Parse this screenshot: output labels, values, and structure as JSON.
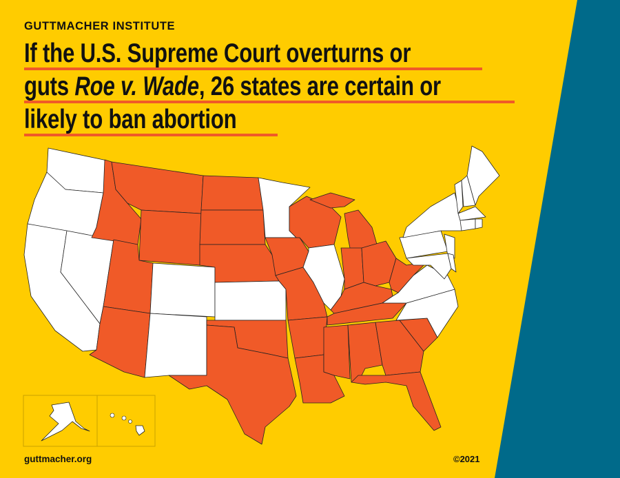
{
  "organization": "GUTTMACHER INSTITUTE",
  "title_lines": [
    "If the U.S. Supreme Court overturns or",
    "guts ",
    "Roe v. Wade",
    ", 26 states are certain or",
    "likely to ban abortion"
  ],
  "footer": {
    "website": "guttmacher.org",
    "copyright": "©2021"
  },
  "colors": {
    "background": "#FFCC00",
    "ban_likely": "#F05A28",
    "other": "#FFFFFF",
    "accent_band": "#006A8A",
    "underline": "#F05A28"
  },
  "map_legend_categories": {
    "ban": "certain or likely to ban abortion",
    "none": "not likely to ban"
  },
  "states": {
    "WA": "none",
    "OR": "none",
    "CA": "none",
    "NV": "none",
    "ID": "ban",
    "MT": "ban",
    "WY": "ban",
    "UT": "ban",
    "AZ": "ban",
    "CO": "none",
    "NM": "none",
    "ND": "ban",
    "SD": "ban",
    "NE": "ban",
    "KS": "none",
    "OK": "ban",
    "TX": "ban",
    "MN": "none",
    "IA": "ban",
    "MO": "ban",
    "AR": "ban",
    "LA": "ban",
    "WI": "ban",
    "IL": "none",
    "MI": "ban",
    "IN": "ban",
    "OH": "ban",
    "KY": "ban",
    "TN": "ban",
    "MS": "ban",
    "AL": "ban",
    "GA": "ban",
    "FL": "ban",
    "SC": "ban",
    "NC": "none",
    "VA": "none",
    "WV": "ban",
    "PA": "none",
    "NY": "none",
    "NJ": "none",
    "MD": "none",
    "DE": "none",
    "VT": "none",
    "NH": "none",
    "ME": "none",
    "MA": "none",
    "CT": "none",
    "RI": "none",
    "AK": "none",
    "HI": "none"
  }
}
